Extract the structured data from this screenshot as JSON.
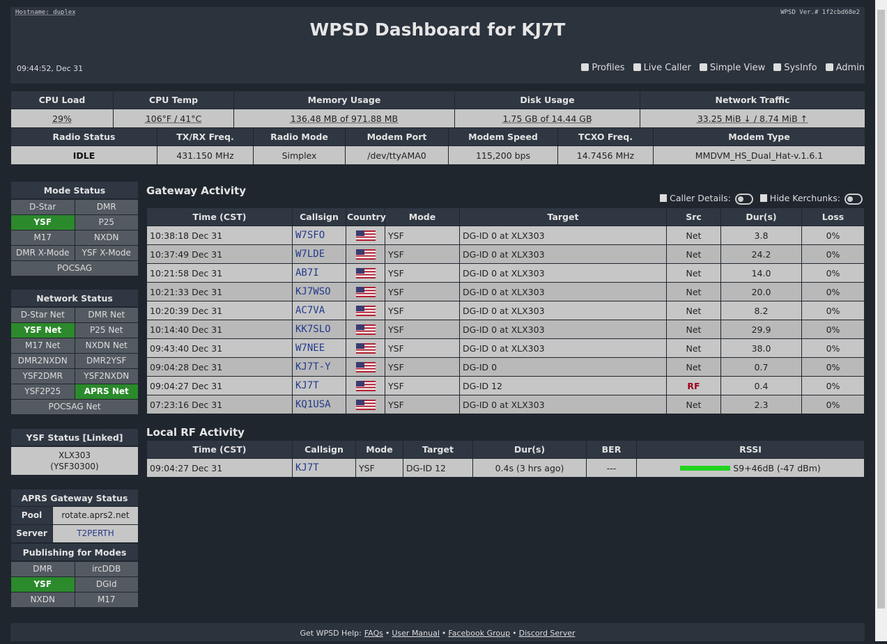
{
  "header": {
    "hostname": "Hostname: duplex",
    "version": "WPSD Ver.# 1f2cbd68e2",
    "title": "WPSD Dashboard for KJ7T",
    "time": "09:44:52, Dec 31",
    "nav": [
      "Profiles",
      "Live Caller",
      "Simple View",
      "SysInfo",
      "Admin"
    ]
  },
  "sysinfo": {
    "columns": [
      "CPU Load",
      "CPU Temp",
      "Memory Usage",
      "Disk Usage",
      "Network Traffic"
    ],
    "values": [
      "29%",
      "106°F / 41°C",
      "136.48 MB of 971.88 MB",
      "1.75 GB of 14.44 GB",
      "33.25 MiB ↓ / 8.74 MiB ↑"
    ]
  },
  "radio": {
    "columns": [
      "Radio Status",
      "TX/RX Freq.",
      "Radio Mode",
      "Modem Port",
      "Modem Speed",
      "TCXO Freq.",
      "Modem Type"
    ],
    "values": [
      "IDLE",
      "431.150 MHz",
      "Simplex",
      "/dev/ttyAMA0",
      "115,200 bps",
      "14.7456 MHz",
      "MMDVM_HS_Dual_Hat-v.1.6.1"
    ]
  },
  "mode_status": {
    "title": "Mode Status",
    "items": [
      {
        "label": "D-Star",
        "active": false
      },
      {
        "label": "DMR",
        "active": false
      },
      {
        "label": "YSF",
        "active": true
      },
      {
        "label": "P25",
        "active": false
      },
      {
        "label": "M17",
        "active": false
      },
      {
        "label": "NXDN",
        "active": false
      },
      {
        "label": "DMR X-Mode",
        "active": false
      },
      {
        "label": "YSF X-Mode",
        "active": false
      },
      {
        "label": "POCSAG",
        "active": false
      }
    ]
  },
  "network_status": {
    "title": "Network Status",
    "items": [
      {
        "label": "D-Star Net",
        "active": false
      },
      {
        "label": "DMR Net",
        "active": false
      },
      {
        "label": "YSF Net",
        "active": true
      },
      {
        "label": "P25 Net",
        "active": false
      },
      {
        "label": "M17 Net",
        "active": false
      },
      {
        "label": "NXDN Net",
        "active": false
      },
      {
        "label": "DMR2NXDN",
        "active": false
      },
      {
        "label": "DMR2YSF",
        "active": false
      },
      {
        "label": "YSF2DMR",
        "active": false
      },
      {
        "label": "YSF2NXDN",
        "active": false
      },
      {
        "label": "YSF2P25",
        "active": false
      },
      {
        "label": "APRS Net",
        "active": true
      },
      {
        "label": "POCSAG Net",
        "active": false
      }
    ]
  },
  "ysf_status": {
    "title": "YSF Status [Linked]",
    "lines": [
      "XLX303",
      "(YSF30300)"
    ]
  },
  "aprs": {
    "title": "APRS Gateway Status",
    "rows": [
      [
        "Pool",
        "rotate.aprs2.net"
      ],
      [
        "Server",
        "T2PERTH"
      ]
    ],
    "publishing_title": "Publishing for Modes",
    "items": [
      {
        "label": "DMR",
        "active": false
      },
      {
        "label": "ircDDB",
        "active": false
      },
      {
        "label": "YSF",
        "active": true
      },
      {
        "label": "DGId",
        "active": false
      },
      {
        "label": "NXDN",
        "active": false
      },
      {
        "label": "M17",
        "active": false
      }
    ]
  },
  "gateway": {
    "title": "Gateway Activity",
    "caller_details": "Caller Details:",
    "hide_kerchunks": "Hide Kerchunks:",
    "columns": [
      "Time (CST)",
      "Callsign",
      "Country",
      "Mode",
      "Target",
      "Src",
      "Dur(s)",
      "Loss"
    ],
    "rows": [
      {
        "time": "10:38:18 Dec 31",
        "callsign": "W7SFO",
        "mode": "YSF",
        "target": "DG-ID 0 at XLX303",
        "src": "Net",
        "dur": "3.8",
        "loss": "0%"
      },
      {
        "time": "10:37:49 Dec 31",
        "callsign": "W7LDE",
        "mode": "YSF",
        "target": "DG-ID 0 at XLX303",
        "src": "Net",
        "dur": "24.2",
        "loss": "0%"
      },
      {
        "time": "10:21:58 Dec 31",
        "callsign": "AB7I",
        "mode": "YSF",
        "target": "DG-ID 0 at XLX303",
        "src": "Net",
        "dur": "14.0",
        "loss": "0%"
      },
      {
        "time": "10:21:33 Dec 31",
        "callsign": "KJ7WSO",
        "mode": "YSF",
        "target": "DG-ID 0 at XLX303",
        "src": "Net",
        "dur": "20.0",
        "loss": "0%"
      },
      {
        "time": "10:20:39 Dec 31",
        "callsign": "AC7VA",
        "mode": "YSF",
        "target": "DG-ID 0 at XLX303",
        "src": "Net",
        "dur": "8.2",
        "loss": "0%"
      },
      {
        "time": "10:14:40 Dec 31",
        "callsign": "KK7SLO",
        "mode": "YSF",
        "target": "DG-ID 0 at XLX303",
        "src": "Net",
        "dur": "29.9",
        "loss": "0%"
      },
      {
        "time": "09:43:40 Dec 31",
        "callsign": "W7NEE",
        "mode": "YSF",
        "target": "DG-ID 0 at XLX303",
        "src": "Net",
        "dur": "38.0",
        "loss": "0%"
      },
      {
        "time": "09:04:28 Dec 31",
        "callsign": "KJ7T-Y",
        "mode": "YSF",
        "target": "DG-ID 0",
        "src": "Net",
        "dur": "0.7",
        "loss": "0%"
      },
      {
        "time": "09:04:27 Dec 31",
        "callsign": "KJ7T",
        "mode": "YSF",
        "target": "DG-ID 12",
        "src": "RF",
        "src_color": "#a0001c",
        "dur": "0.4",
        "loss": "0%"
      },
      {
        "time": "07:23:16 Dec 31",
        "callsign": "KQ1USA",
        "mode": "YSF",
        "target": "DG-ID 0 at XLX303",
        "src": "Net",
        "dur": "2.3",
        "loss": "0%"
      }
    ]
  },
  "local_rf": {
    "title": "Local RF Activity",
    "columns": [
      "Time (CST)",
      "Callsign",
      "Mode",
      "Target",
      "Dur(s)",
      "BER",
      "RSSI"
    ],
    "rows": [
      {
        "time": "09:04:27 Dec 31",
        "callsign": "KJ7T",
        "mode": "YSF",
        "target": "DG-ID 12",
        "dur": "0.4s (3 hrs ago)",
        "ber": "---",
        "rssi": "S9+46dB (-47 dBm)"
      }
    ]
  },
  "footer": {
    "prefix": "Get WPSD Help:",
    "links": [
      "FAQs",
      "User Manual",
      "Facebook Group",
      "Discord Server"
    ],
    "separator": "•"
  }
}
